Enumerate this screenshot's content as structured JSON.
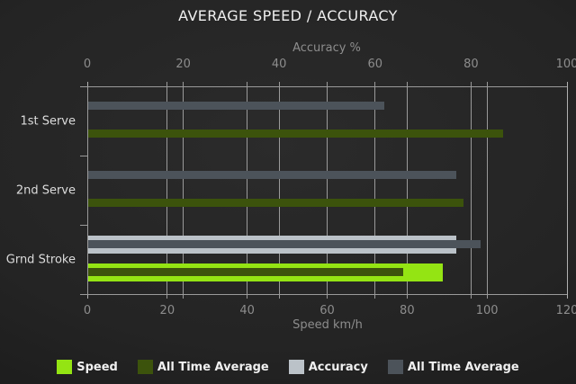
{
  "chart_data": {
    "type": "bar",
    "orientation": "horizontal",
    "title": "AVERAGE SPEED / ACCURACY",
    "grid": true,
    "legend_position": "bottom",
    "categories": [
      "1st Serve",
      "2nd Serve",
      "Grnd Stroke"
    ],
    "axes": {
      "top": {
        "label": "Accuracy %",
        "min": 0,
        "max": 100,
        "ticks": [
          0,
          20,
          40,
          60,
          80,
          100
        ]
      },
      "bottom": {
        "label": "Speed km/h",
        "min": 0,
        "max": 120,
        "ticks": [
          0,
          20,
          40,
          60,
          80,
          100,
          120
        ]
      }
    },
    "series": [
      {
        "name": "Speed",
        "axis": "bottom",
        "role": "current",
        "color": "#94e413",
        "values": [
          null,
          null,
          89
        ]
      },
      {
        "name": "All Time Average",
        "axis": "bottom",
        "role": "average",
        "color": "#3c530c",
        "values": [
          104,
          94,
          79
        ]
      },
      {
        "name": "Accuracy",
        "axis": "top",
        "role": "current",
        "color": "#bbc2c8",
        "values": [
          null,
          null,
          77
        ]
      },
      {
        "name": "All Time Average",
        "axis": "top",
        "role": "average",
        "color": "#4c535a",
        "values": [
          62,
          77,
          82
        ]
      }
    ],
    "colors": {
      "background": "#242424",
      "gridline": "#b6b6b6",
      "axis_frame": "#9a9a9a",
      "title_text": "#efefef",
      "tick_text": "#8d8d8d",
      "category_text": "#dcdcdc",
      "legend_text": "#f0f0f0"
    }
  }
}
